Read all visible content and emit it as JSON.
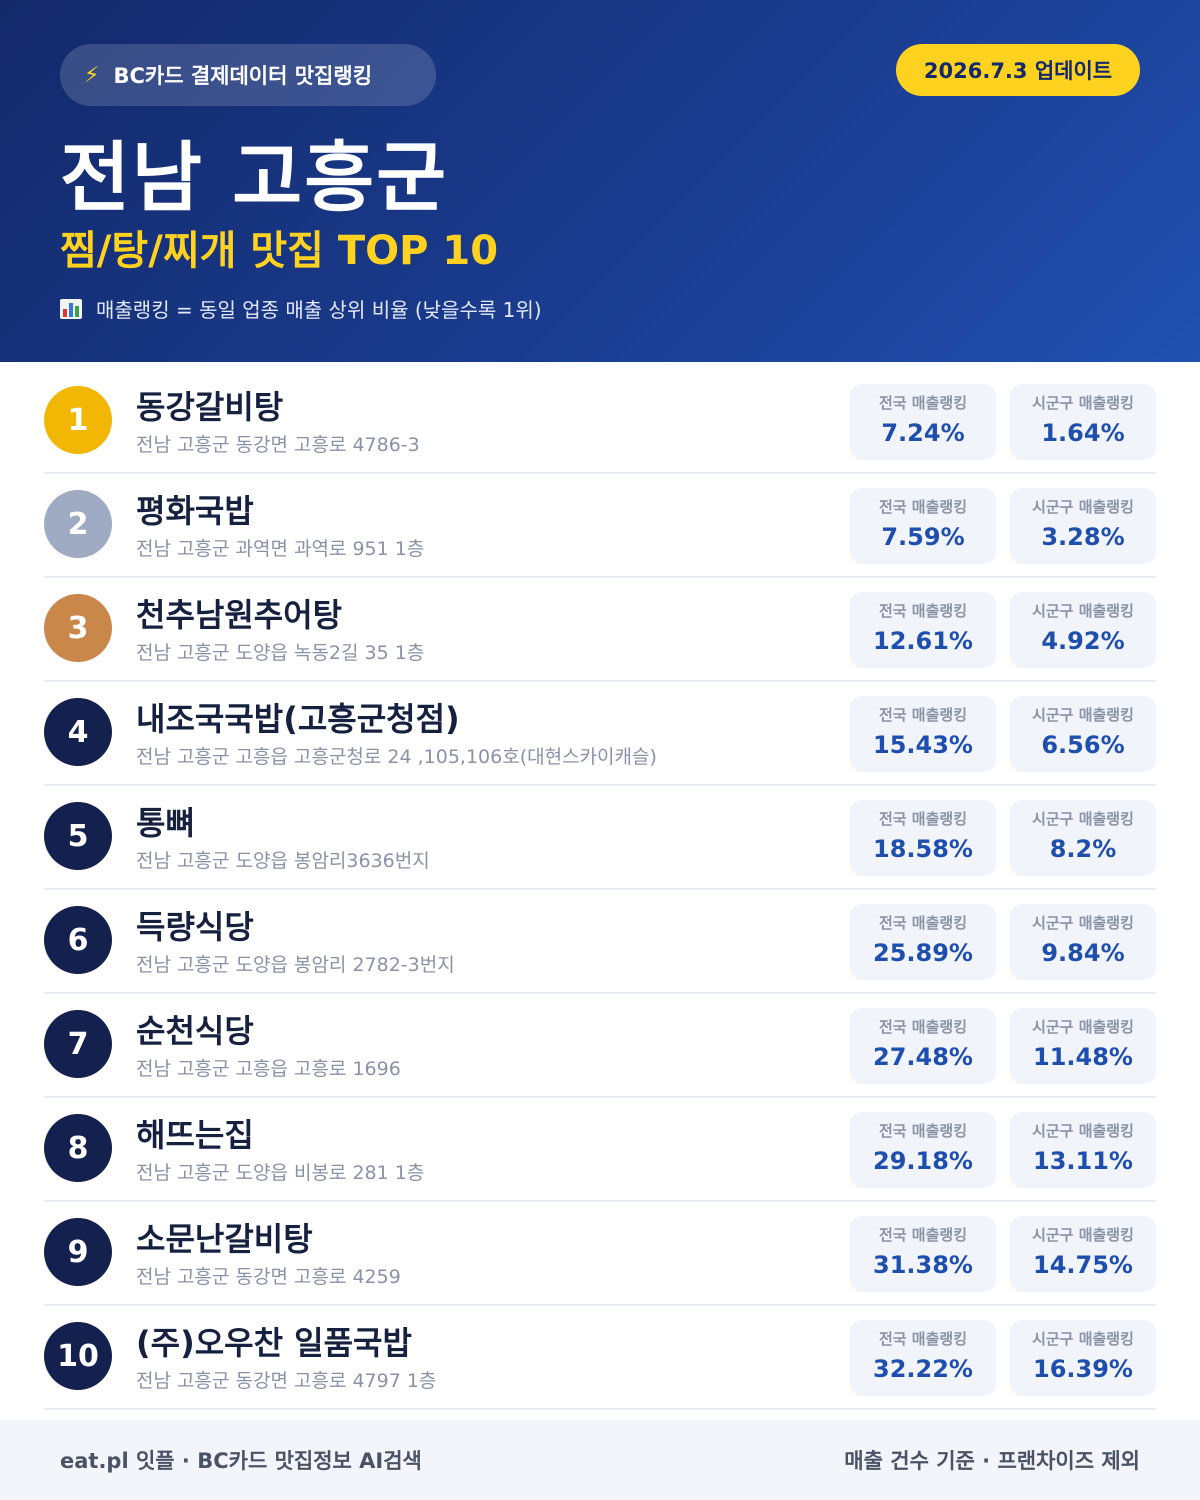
{
  "header": {
    "brand_icon": "lightning-bolt-icon",
    "brand": "BC카드 결제데이터 맛집랭킹",
    "update": "2026.7.3 업데이트",
    "region": "전남 고흥군",
    "subtitle": "찜/탕/찌개 맛집 TOP 10",
    "note_icon": "bar-chart-icon",
    "note": "매출랭킹 = 동일 업종 매출 상위 비율 (낮을수록 1위)"
  },
  "stat_labels": {
    "national": "전국 매출랭킹",
    "local": "시군구 매출랭킹"
  },
  "restaurants": [
    {
      "rank": "1",
      "name": "동강갈비탕",
      "address": "전남 고흥군 동강면 고흥로 4786-3",
      "national": "7.24%",
      "local": "1.64%"
    },
    {
      "rank": "2",
      "name": "평화국밥",
      "address": "전남 고흥군 과역면 과역로 951 1층",
      "national": "7.59%",
      "local": "3.28%"
    },
    {
      "rank": "3",
      "name": "천추남원추어탕",
      "address": "전남 고흥군 도양읍 녹동2길 35 1층",
      "national": "12.61%",
      "local": "4.92%"
    },
    {
      "rank": "4",
      "name": "내조국국밥(고흥군청점)",
      "address": "전남 고흥군 고흥읍 고흥군청로 24 ,105,106호(대현스카이캐슬)",
      "national": "15.43%",
      "local": "6.56%"
    },
    {
      "rank": "5",
      "name": "통뼈",
      "address": "전남 고흥군 도양읍 봉암리3636번지",
      "national": "18.58%",
      "local": "8.2%"
    },
    {
      "rank": "6",
      "name": "득량식당",
      "address": "전남 고흥군 도양읍 봉암리 2782-3번지",
      "national": "25.89%",
      "local": "9.84%"
    },
    {
      "rank": "7",
      "name": "순천식당",
      "address": "전남 고흥군 고흥읍 고흥로 1696",
      "national": "27.48%",
      "local": "11.48%"
    },
    {
      "rank": "8",
      "name": "해뜨는집",
      "address": "전남 고흥군 도양읍 비봉로 281 1층",
      "national": "29.18%",
      "local": "13.11%"
    },
    {
      "rank": "9",
      "name": "소문난갈비탕",
      "address": "전남 고흥군 동강면 고흥로 4259",
      "national": "31.38%",
      "local": "14.75%"
    },
    {
      "rank": "10",
      "name": "(주)오우찬 일품국밥",
      "address": "전남 고흥군 동강면 고흥로 4797 1층",
      "national": "32.22%",
      "local": "16.39%"
    }
  ],
  "footer": {
    "left": "eat.pl 잇플 · BC카드 맛집정보 AI검색",
    "right": "매출 건수 기준 · 프랜차이즈 제외"
  }
}
